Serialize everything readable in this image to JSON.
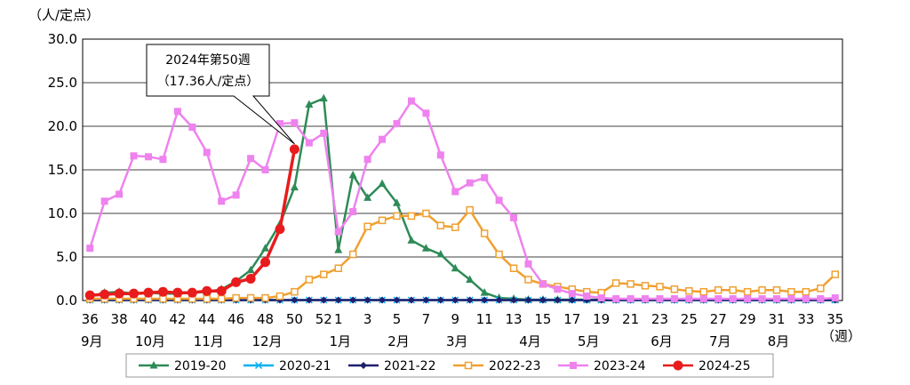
{
  "chart_data": {
    "type": "line",
    "ylabel": "（人/定点）",
    "xunit": "（週）",
    "ylim": [
      0,
      30
    ],
    "yticks": [
      "0.0",
      "5.0",
      "10.0",
      "15.0",
      "20.0",
      "25.0",
      "30.0"
    ],
    "grid": true,
    "legend_position": "bottom",
    "weeks": [
      36,
      37,
      38,
      39,
      40,
      41,
      42,
      43,
      44,
      45,
      46,
      47,
      48,
      49,
      50,
      51,
      52,
      1,
      2,
      3,
      4,
      5,
      6,
      7,
      8,
      9,
      10,
      11,
      12,
      13,
      14,
      15,
      16,
      17,
      18,
      19,
      20,
      21,
      22,
      23,
      24,
      25,
      26,
      27,
      28,
      29,
      30,
      31,
      32,
      33,
      34,
      35
    ],
    "week_tick_labels": [
      "36",
      "38",
      "40",
      "42",
      "44",
      "46",
      "48",
      "50",
      "52",
      "1",
      "3",
      "5",
      "7",
      "9",
      "11",
      "13",
      "15",
      "17",
      "19",
      "21",
      "23",
      "25",
      "27",
      "29",
      "31",
      "33",
      "35"
    ],
    "month_labels": [
      "9月",
      "10月",
      "11月",
      "12月",
      "1月",
      "2月",
      "3月",
      "4月",
      "5月",
      "6月",
      "7月",
      "8月"
    ],
    "annotation": {
      "line1": "2024年第50週",
      "line2": "（17.36人/定点）",
      "week": 50,
      "value": 17.36
    },
    "series": [
      {
        "name": "2019-20",
        "color": "#2E8B57",
        "marker": "triangle",
        "values": [
          0.5,
          0.9,
          1.0,
          0.8,
          0.9,
          0.8,
          0.8,
          0.9,
          1.0,
          1.3,
          2.2,
          3.5,
          6.0,
          8.8,
          13.0,
          22.5,
          23.2,
          5.8,
          14.4,
          11.8,
          13.4,
          11.2,
          6.9,
          6.0,
          5.3,
          3.7,
          2.4,
          0.9,
          0.3,
          0.2,
          0.1,
          0.1,
          0.1,
          0.1,
          0.1,
          0.1,
          0.1,
          0.1,
          0.1,
          0.1,
          0.1,
          0.1,
          0.1,
          0.1,
          0.1,
          0.1,
          0.1,
          0.1,
          0.1,
          0.1,
          0.1,
          0.1
        ]
      },
      {
        "name": "2020-21",
        "color": "#00B0F0",
        "marker": "x",
        "values": [
          0.05,
          0.05,
          0.05,
          0.05,
          0.05,
          0.05,
          0.05,
          0.05,
          0.05,
          0.05,
          0.05,
          0.05,
          0.05,
          0.05,
          0.05,
          0.05,
          0.05,
          0.05,
          0.05,
          0.05,
          0.05,
          0.05,
          0.05,
          0.05,
          0.05,
          0.05,
          0.05,
          0.05,
          0.05,
          0.05,
          0.05,
          0.05,
          0.05,
          0.05,
          0.05,
          0.05,
          0.05,
          0.05,
          0.05,
          0.05,
          0.05,
          0.05,
          0.05,
          0.05,
          0.05,
          0.05,
          0.05,
          0.05,
          0.05,
          0.05,
          0.05,
          0.05
        ]
      },
      {
        "name": "2021-22",
        "color": "#1F1F6E",
        "marker": "diamond",
        "values": [
          0.05,
          0.05,
          0.05,
          0.05,
          0.05,
          0.05,
          0.05,
          0.05,
          0.05,
          0.05,
          0.05,
          0.05,
          0.05,
          0.05,
          0.05,
          0.05,
          0.05,
          0.05,
          0.05,
          0.05,
          0.05,
          0.05,
          0.05,
          0.05,
          0.05,
          0.05,
          0.05,
          0.05,
          0.05,
          0.05,
          0.05,
          0.05,
          0.05,
          0.05,
          0.05,
          0.05,
          0.05,
          0.05,
          0.05,
          0.05,
          0.05,
          0.05,
          0.05,
          0.05,
          0.05,
          0.05,
          0.05,
          0.05,
          0.05,
          0.05,
          0.05,
          0.05
        ]
      },
      {
        "name": "2022-23",
        "color": "#F0A030",
        "marker": "square-open",
        "values": [
          0.2,
          0.2,
          0.2,
          0.2,
          0.2,
          0.2,
          0.2,
          0.2,
          0.2,
          0.2,
          0.3,
          0.3,
          0.3,
          0.5,
          1.0,
          2.4,
          3.0,
          3.7,
          5.3,
          8.5,
          9.2,
          9.7,
          9.7,
          10.0,
          8.6,
          8.4,
          10.4,
          7.7,
          5.3,
          3.7,
          2.4,
          1.9,
          1.6,
          1.3,
          1.0,
          0.9,
          2.0,
          1.9,
          1.7,
          1.6,
          1.3,
          1.1,
          1.0,
          1.2,
          1.2,
          1.0,
          1.2,
          1.2,
          1.0,
          1.0,
          1.4,
          3.0
        ]
      },
      {
        "name": "2023-24",
        "color": "#EE82EE",
        "marker": "square",
        "values": [
          6.0,
          11.4,
          12.2,
          16.6,
          16.5,
          16.2,
          21.7,
          19.9,
          17.0,
          11.4,
          12.1,
          16.3,
          15.0,
          20.3,
          20.4,
          18.1,
          19.2,
          7.9,
          10.2,
          16.2,
          18.5,
          20.3,
          22.9,
          21.5,
          16.7,
          12.5,
          13.5,
          14.1,
          11.5,
          9.5,
          4.2,
          1.9,
          1.3,
          0.8,
          0.5,
          0.3,
          0.2,
          0.2,
          0.2,
          0.2,
          0.2,
          0.2,
          0.2,
          0.2,
          0.2,
          0.2,
          0.2,
          0.2,
          0.2,
          0.2,
          0.2,
          0.3
        ]
      },
      {
        "name": "2024-25",
        "color": "#E81C1C",
        "marker": "circle",
        "values": [
          0.6,
          0.7,
          0.8,
          0.8,
          0.9,
          1.0,
          0.9,
          0.9,
          1.1,
          1.1,
          2.1,
          2.5,
          4.4,
          8.2,
          17.36
        ]
      }
    ]
  }
}
